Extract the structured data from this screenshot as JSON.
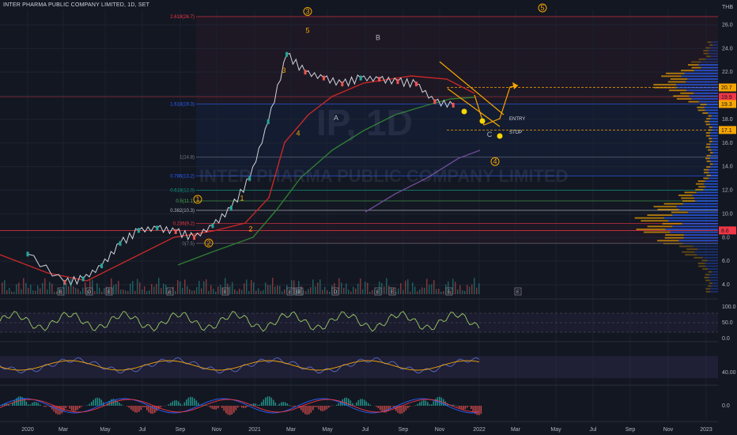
{
  "header": {
    "title": "INTER PHARMA PUBLIC COMPANY LIMITED, 1D, SET",
    "currency": "THB",
    "watermark_symbol": "IP, 1D",
    "watermark_name": "INTER PHARMA PUBLIC COMPANY LIMITED"
  },
  "colors": {
    "background": "#131722",
    "candle_up": "#26a69a",
    "candle_down": "#ef5350",
    "ema_red": "#c62828",
    "ema_green": "#2e7d32",
    "ema_purple": "#6a4c93",
    "elliott": "#f7a600",
    "fib_red": "#f23645",
    "fib_blue": "#2962ff",
    "volume_profile_blue": "#2962ff",
    "volume_profile_orange": "#f7a600"
  },
  "chart_data": [
    {
      "type": "line",
      "name": "price",
      "x_ticks": [
        "2020",
        "Mar",
        "May",
        "Jul",
        "Sep",
        "Nov",
        "2021",
        "Mar",
        "May",
        "Jul",
        "Sep",
        "Nov",
        "2022",
        "Mar",
        "May",
        "Jul",
        "Sep",
        "Nov",
        "2023"
      ],
      "y_ticks": [
        4.0,
        6.0,
        8.0,
        10.0,
        12.0,
        14.0,
        16.0,
        18.0,
        20.0,
        22.0,
        24.0,
        26.0
      ],
      "ylim": [
        3.0,
        27.3
      ],
      "x": [
        "2020-01",
        "2020-03",
        "2020-04",
        "2020-05",
        "2020-06",
        "2020-07",
        "2020-08",
        "2020-09",
        "2020-10",
        "2020-11",
        "2020-12",
        "2021-01",
        "2021-02",
        "2021-03",
        "2021-04",
        "2021-05",
        "2021-06",
        "2021-07",
        "2021-08",
        "2021-09",
        "2021-10",
        "2021-11",
        "2021-12"
      ],
      "y": [
        6.6,
        4.2,
        4.5,
        5.6,
        7.5,
        8.6,
        8.8,
        8.5,
        8.0,
        9.0,
        10.5,
        13.0,
        17.8,
        23.5,
        22.0,
        21.5,
        21.0,
        21.5,
        21.4,
        21.2,
        21.0,
        19.5,
        19.2
      ],
      "price_labels": [
        {
          "value": 20.7,
          "label": "20.7",
          "color": "#f7a600"
        },
        {
          "value": 19.9,
          "label": "19.9",
          "color": "#f23645"
        },
        {
          "value": 19.3,
          "label": "19.3",
          "color": "#f7a600"
        },
        {
          "value": 17.1,
          "label": "17.1",
          "color": "#f7a600"
        },
        {
          "value": 8.6,
          "label": "8.6",
          "color": "#f23645"
        }
      ],
      "fib_levels": [
        {
          "value": 26.7,
          "label": "2.618(26.7)",
          "color": "#f23645"
        },
        {
          "value": 19.3,
          "label": "1.618(19.3)",
          "color": "#2962ff"
        },
        {
          "value": 14.8,
          "label": "1(14.8)",
          "color": "#787b86"
        },
        {
          "value": 13.2,
          "label": "0.786(13.2)",
          "color": "#2962ff"
        },
        {
          "value": 12.0,
          "label": "0.618(12.0)",
          "color": "#089981"
        },
        {
          "value": 11.1,
          "label": "0.5(11.1)",
          "color": "#4caf50"
        },
        {
          "value": 10.3,
          "label": "0.382(10.3)",
          "color": "#b2b5be"
        },
        {
          "value": 9.2,
          "label": "0.236(9.2)",
          "color": "#f23645"
        },
        {
          "value": 7.5,
          "label": "0(7.5)",
          "color": "#787b86"
        }
      ],
      "elliott_labels": [
        "1",
        "2",
        "3",
        "4",
        "5",
        "A",
        "B",
        "C",
        "1",
        "2",
        "3",
        "4",
        "5"
      ],
      "annotations": [
        "ENTRY",
        "STOP"
      ],
      "event_markers": [
        "E",
        "D",
        "E",
        "E",
        "E",
        "D",
        "E",
        "E",
        "D",
        "E",
        "E",
        "E",
        "E"
      ]
    },
    {
      "type": "line",
      "name": "oscillator-1",
      "y_ticks": [
        0.0,
        50.0,
        100.0
      ],
      "ylim": [
        0,
        100
      ]
    },
    {
      "type": "line",
      "name": "oscillator-2",
      "y_ticks": [
        40.0
      ]
    },
    {
      "type": "bar",
      "name": "macd-histogram",
      "y_ticks": [
        0.0
      ]
    }
  ]
}
